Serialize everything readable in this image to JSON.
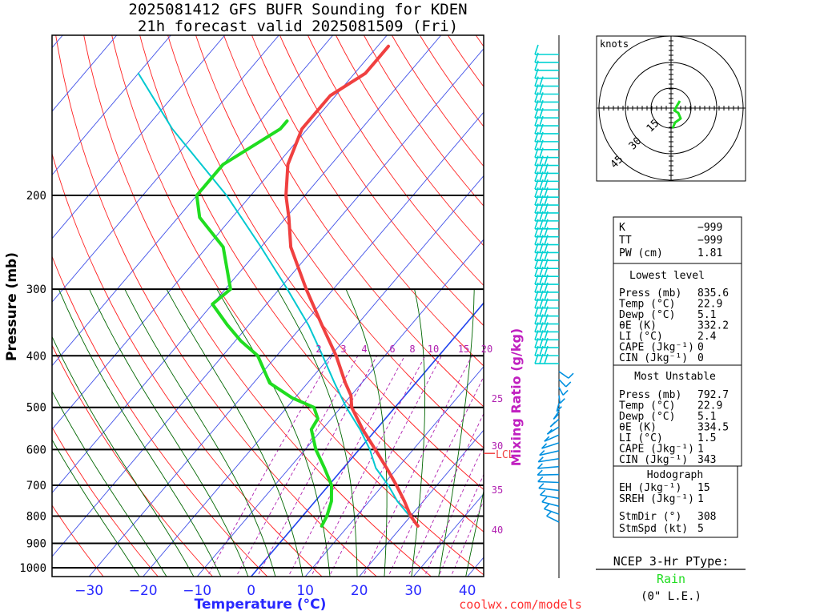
{
  "chart_data": {
    "type": "skew-t",
    "title_line1": "2025081412 GFS BUFR Sounding for KDEN",
    "title_line2": "21h forecast valid 2025081509 (Fri)",
    "xlabel": "Temperature (°C)",
    "ylabel": "Pressure (mb)",
    "mixing_ratio_label": "Mixing Ratio (g/kg)",
    "x_ticks": [
      "−30",
      "−20",
      "−10",
      "0",
      "10",
      "20",
      "30",
      "40"
    ],
    "x_tick_values": [
      -30,
      -20,
      -10,
      0,
      10,
      20,
      30,
      40
    ],
    "pressure_labels": [
      "200",
      "300",
      "400",
      "500",
      "600",
      "700",
      "800",
      "900",
      "1000"
    ],
    "pressure_levels": [
      200,
      300,
      400,
      500,
      600,
      700,
      800,
      900,
      1000
    ],
    "mixing_ratio_ticks": [
      "2",
      "3",
      "4",
      "6",
      "8",
      "10",
      "15",
      "20",
      "25",
      "30",
      "35",
      "40"
    ],
    "lcl_label": "LCL",
    "temperature_series": {
      "name": "Temperature",
      "color": "#f04040",
      "pressure": [
        835,
        800,
        750,
        700,
        650,
        600,
        550,
        500,
        475,
        450,
        400,
        350,
        300,
        250,
        220,
        200,
        175,
        150,
        130,
        118,
        110,
        105
      ],
      "temp_c": [
        22.9,
        20.0,
        16.5,
        12.5,
        8.0,
        3.0,
        -2.5,
        -8.0,
        -10.0,
        -13.0,
        -19.0,
        -26.5,
        -35.0,
        -44.5,
        -49.5,
        -53.5,
        -58.0,
        -61.0,
        -61.0,
        -58.0,
        -58.0,
        -58.0
      ]
    },
    "dewpoint_series": {
      "name": "Dewpoint",
      "color": "#20dd20",
      "pressure": [
        835,
        800,
        750,
        700,
        650,
        600,
        550,
        525,
        500,
        480,
        450,
        400,
        375,
        350,
        320,
        300,
        250,
        220,
        200,
        175,
        150,
        145
      ],
      "temp_c": [
        5.1,
        4.5,
        3.0,
        0.5,
        -3.5,
        -8.0,
        -12.0,
        -12.5,
        -15.0,
        -20.5,
        -27.0,
        -33.5,
        -39.0,
        -44.0,
        -50.0,
        -49.0,
        -57.0,
        -66.0,
        -70.0,
        -70.0,
        -65.0,
        -65.0
      ]
    },
    "parcel_series": {
      "name": "Parcel",
      "color": "#00c8d0",
      "pressure": [
        835,
        750,
        700,
        650,
        600,
        550,
        500,
        450,
        400,
        350,
        300,
        250,
        200,
        150,
        118
      ],
      "temp_c": [
        22.9,
        15.2,
        11.0,
        6.0,
        2.0,
        -3.0,
        -9.0,
        -15.0,
        -21.5,
        -29.0,
        -38.5,
        -50.0,
        -64.5,
        -85.0,
        -100.0
      ]
    },
    "wind_barbs": {
      "count": 60,
      "upper_color": "#00d2d2",
      "lower_color": "#0090e0"
    },
    "hodograph": {
      "unit_label": "knots",
      "ring_labels": [
        "15",
        "30",
        "45"
      ],
      "trace_color": "#20dd20"
    },
    "indices": {
      "k_label": "K",
      "k_value": "−999",
      "tt_label": "TT",
      "tt_value": "−999",
      "pw_label": "PW (cm)",
      "pw_value": "1.81"
    },
    "lowest_level": {
      "header": "Lowest level",
      "rows": [
        {
          "label": "Press (mb)",
          "value": "835.6"
        },
        {
          "label": "Temp (°C)",
          "value": "22.9"
        },
        {
          "label": "Dewp (°C)",
          "value": "5.1"
        },
        {
          "label": "θE (K)",
          "value": "332.2"
        },
        {
          "label": "LI (°C)",
          "value": "2.4"
        },
        {
          "label": "CAPE (Jkg⁻¹)",
          "value": "0"
        },
        {
          "label": "CIN (Jkg⁻¹)",
          "value": "0"
        }
      ]
    },
    "most_unstable": {
      "header": "Most Unstable",
      "rows": [
        {
          "label": "Press (mb)",
          "value": "792.7"
        },
        {
          "label": "Temp (°C)",
          "value": "22.9"
        },
        {
          "label": "Dewp (°C)",
          "value": "5.1"
        },
        {
          "label": "θE (K)",
          "value": "334.5"
        },
        {
          "label": "LI (°C)",
          "value": "1.5"
        },
        {
          "label": "CAPE (Jkg⁻¹)",
          "value": "1"
        },
        {
          "label": "CIN (Jkg⁻¹)",
          "value": "343"
        }
      ]
    },
    "hodograph_box": {
      "header": "Hodograph",
      "rows": [
        {
          "label": "EH (Jkg⁻¹)",
          "value": "15"
        },
        {
          "label": "SREH (Jkg⁻¹)",
          "value": "1"
        },
        {
          "label": "StmDir (°)",
          "value": "308"
        },
        {
          "label": "StmSpd (kt)",
          "value": "5"
        }
      ]
    },
    "ptype": {
      "title": "NCEP 3-Hr PType:",
      "value": "Rain",
      "value_color": "#20dd20",
      "accum": "(0\" L.E.)"
    },
    "credit": "coolwx.com/models"
  }
}
